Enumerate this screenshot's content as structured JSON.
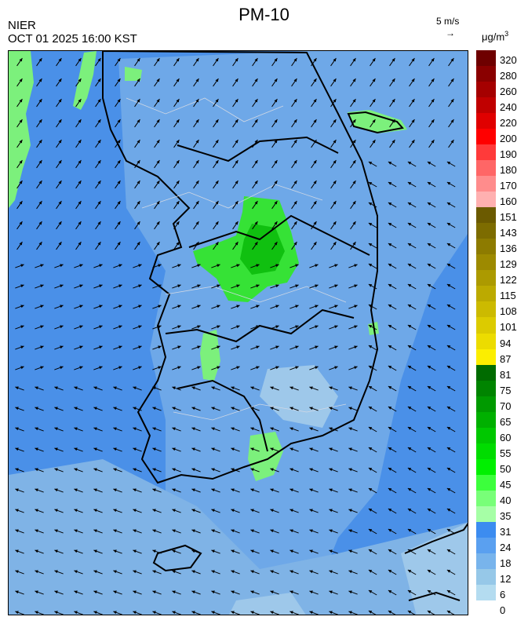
{
  "header": {
    "title": "PM-10",
    "agency": "NIER",
    "timestamp": "OCT 01 2025 16:00 KST",
    "wind_reference": "5 m/s",
    "wind_reference_arrow": "→",
    "unit_base": "μg/m",
    "unit_exp": "3"
  },
  "map": {
    "wind_arrow_glyph": "↗"
  },
  "legend": {
    "labels": [
      "320",
      "280",
      "260",
      "240",
      "220",
      "200",
      "190",
      "180",
      "170",
      "160",
      "151",
      "143",
      "136",
      "129",
      "122",
      "115",
      "108",
      "101",
      "94",
      "87",
      "81",
      "75",
      "70",
      "65",
      "60",
      "55",
      "50",
      "45",
      "40",
      "35",
      "31",
      "24",
      "18",
      "12",
      "6",
      "0"
    ],
    "colors": [
      "#6e0000",
      "#8a0000",
      "#a50000",
      "#c00000",
      "#e00000",
      "#ff0000",
      "#ff3a3a",
      "#ff6666",
      "#ff8c8c",
      "#ffb0b0",
      "#6b5a00",
      "#7d6c00",
      "#8d7b00",
      "#9d8a00",
      "#ac9a00",
      "#bcaa00",
      "#ccba00",
      "#dccb00",
      "#ecdc00",
      "#fcee00",
      "#006b00",
      "#008400",
      "#009a00",
      "#00b000",
      "#00c800",
      "#00dc00",
      "#00f000",
      "#3cff3c",
      "#78ff78",
      "#a6ffa6",
      "#3c8cf0",
      "#5aa0f0",
      "#78b4ec",
      "#96c8e8",
      "#b4dcf0"
    ]
  }
}
